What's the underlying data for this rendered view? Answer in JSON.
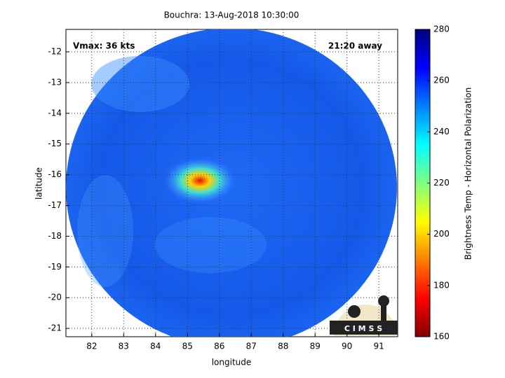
{
  "chart_data": {
    "type": "image",
    "title": "Bouchra: 13-Aug-2018 10:30:00",
    "xlabel": "longitude",
    "ylabel": "latitude",
    "xlim": [
      81.19,
      91.59
    ],
    "xticks": [
      82,
      83,
      84,
      85,
      86,
      87,
      88,
      89,
      90,
      91
    ],
    "ylim": [
      -21.27,
      -11.27
    ],
    "yticks": [
      -21,
      -20,
      -19,
      -18,
      -17,
      -16,
      -15,
      -14,
      -13,
      -12
    ],
    "grid": true,
    "annotations": [
      "Vmax: 36 kts",
      "21:20 away"
    ],
    "colorbar": {
      "label": "Brightness Temp - Horizontal Polarization",
      "lim": [
        160,
        280
      ],
      "ticks": [
        160,
        180,
        200,
        220,
        240,
        260,
        280
      ]
    },
    "logo": "C I M S S"
  }
}
